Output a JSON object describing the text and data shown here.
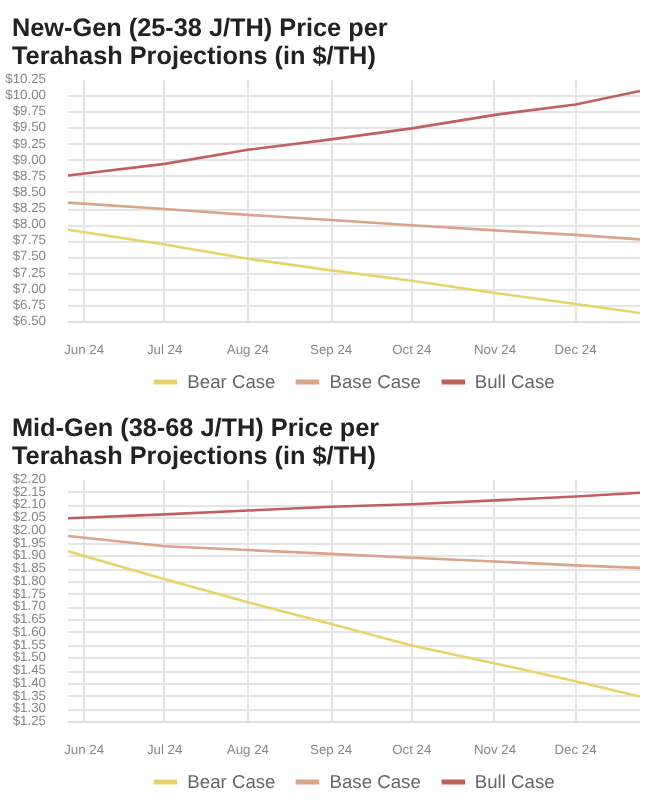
{
  "chart_data": [
    {
      "type": "line",
      "title": "New-Gen (25-38 J/TH) Price per Terahash Projections (in $/TH)",
      "x": [
        "2024-05-26",
        "2024-07-01",
        "2024-08-01",
        "2024-09-01",
        "2024-10-01",
        "2024-11-01",
        "2024-12-01",
        "2024-12-25"
      ],
      "series": [
        {
          "name": "Bear Case",
          "color": "#e8d36a",
          "values": [
            7.93,
            7.7,
            7.48,
            7.3,
            7.14,
            6.95,
            6.78,
            6.64
          ]
        },
        {
          "name": "Base Case",
          "color": "#d9a48a",
          "values": [
            8.35,
            8.25,
            8.16,
            8.08,
            8.0,
            7.92,
            7.85,
            7.78
          ]
        },
        {
          "name": "Bull Case",
          "color": "#c0605e",
          "values": [
            8.77,
            8.95,
            9.17,
            9.33,
            9.5,
            9.71,
            9.87,
            10.08
          ]
        }
      ],
      "xlim": [
        "2024-05-26",
        "2024-12-25"
      ],
      "xticks": [
        {
          "value": "2024-06-01",
          "label": "Jun 24"
        },
        {
          "value": "2024-07-01",
          "label": "Jul 24"
        },
        {
          "value": "2024-08-01",
          "label": "Aug 24"
        },
        {
          "value": "2024-09-01",
          "label": "Sep 24"
        },
        {
          "value": "2024-10-01",
          "label": "Oct 24"
        },
        {
          "value": "2024-11-01",
          "label": "Nov 24"
        },
        {
          "value": "2024-12-01",
          "label": "Dec 24"
        }
      ],
      "ylim": [
        6.5,
        10.25
      ],
      "yticks": [
        {
          "value": 6.5,
          "label": "$6.50"
        },
        {
          "value": 6.75,
          "label": "$6.75"
        },
        {
          "value": 7.0,
          "label": "$7.00"
        },
        {
          "value": 7.25,
          "label": "$7.25"
        },
        {
          "value": 7.5,
          "label": "$7.50"
        },
        {
          "value": 7.75,
          "label": "$7.75"
        },
        {
          "value": 8.0,
          "label": "$8.00"
        },
        {
          "value": 8.25,
          "label": "$8.25"
        },
        {
          "value": 8.5,
          "label": "$8.50"
        },
        {
          "value": 8.75,
          "label": "$8.75"
        },
        {
          "value": 9.0,
          "label": "$9.00"
        },
        {
          "value": 9.25,
          "label": "$9.25"
        },
        {
          "value": 9.5,
          "label": "$9.50"
        },
        {
          "value": 9.75,
          "label": "$9.75"
        },
        {
          "value": 10.0,
          "label": "$10.00"
        },
        {
          "value": 10.25,
          "label": "$10.25"
        }
      ],
      "grid": true,
      "legend": "bottom",
      "marker": "none",
      "line_style": "solid"
    },
    {
      "type": "line",
      "title": "Mid-Gen (38-68 J/TH) Price per Terahash Projections (in $/TH)",
      "x": [
        "2024-05-26",
        "2024-07-01",
        "2024-08-01",
        "2024-09-01",
        "2024-10-01",
        "2024-11-01",
        "2024-12-01",
        "2024-12-25"
      ],
      "series": [
        {
          "name": "Bear Case",
          "color": "#e8d36a",
          "values": [
            1.92,
            1.81,
            1.72,
            1.635,
            1.55,
            1.48,
            1.41,
            1.35
          ]
        },
        {
          "name": "Base Case",
          "color": "#d9a48a",
          "values": [
            1.98,
            1.94,
            1.925,
            1.91,
            1.895,
            1.88,
            1.865,
            1.855
          ]
        },
        {
          "name": "Bull Case",
          "color": "#c0605e",
          "values": [
            2.05,
            2.065,
            2.08,
            2.095,
            2.105,
            2.12,
            2.135,
            2.15
          ]
        }
      ],
      "xlim": [
        "2024-05-26",
        "2024-12-25"
      ],
      "xticks": [
        {
          "value": "2024-06-01",
          "label": "Jun 24"
        },
        {
          "value": "2024-07-01",
          "label": "Jul 24"
        },
        {
          "value": "2024-08-01",
          "label": "Aug 24"
        },
        {
          "value": "2024-09-01",
          "label": "Sep 24"
        },
        {
          "value": "2024-10-01",
          "label": "Oct 24"
        },
        {
          "value": "2024-11-01",
          "label": "Nov 24"
        },
        {
          "value": "2024-12-01",
          "label": "Dec 24"
        }
      ],
      "ylim": [
        1.25,
        2.2
      ],
      "yticks": [
        {
          "value": 1.25,
          "label": "$1.25"
        },
        {
          "value": 1.3,
          "label": "$1.30"
        },
        {
          "value": 1.35,
          "label": "$1.35"
        },
        {
          "value": 1.4,
          "label": "$1.40"
        },
        {
          "value": 1.45,
          "label": "$1.45"
        },
        {
          "value": 1.5,
          "label": "$1.50"
        },
        {
          "value": 1.55,
          "label": "$1.55"
        },
        {
          "value": 1.6,
          "label": "$1.60"
        },
        {
          "value": 1.65,
          "label": "$1.65"
        },
        {
          "value": 1.7,
          "label": "$1.70"
        },
        {
          "value": 1.75,
          "label": "$1.75"
        },
        {
          "value": 1.8,
          "label": "$1.80"
        },
        {
          "value": 1.85,
          "label": "$1.85"
        },
        {
          "value": 1.9,
          "label": "$1.90"
        },
        {
          "value": 1.95,
          "label": "$1.95"
        },
        {
          "value": 2.0,
          "label": "$2.00"
        },
        {
          "value": 2.05,
          "label": "$2.05"
        },
        {
          "value": 2.1,
          "label": "$2.10"
        },
        {
          "value": 2.15,
          "label": "$2.15"
        },
        {
          "value": 2.2,
          "label": "$2.20"
        }
      ],
      "grid": true,
      "legend": "bottom",
      "marker": "none",
      "line_style": "solid"
    }
  ]
}
